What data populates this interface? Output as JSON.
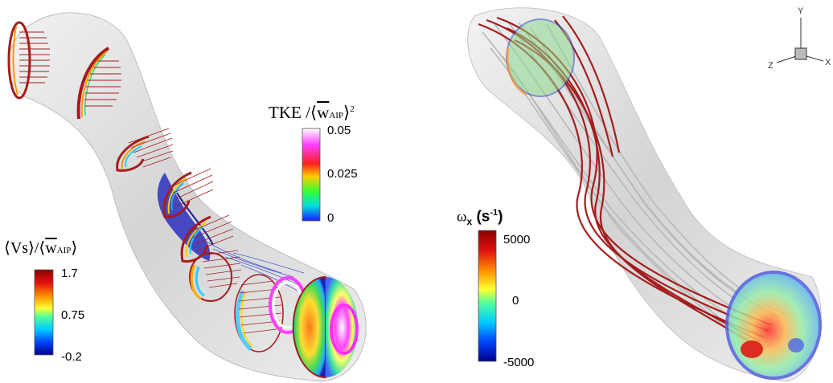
{
  "left_panel": {
    "tke_colorbar": {
      "title_prefix": "TKE /",
      "title_w": "w",
      "title_sub": "AIP",
      "title_power": "2",
      "ticks": [
        "0.05",
        "0.025",
        "0"
      ]
    },
    "vs_colorbar": {
      "title_v": "Vs",
      "title_w": "w",
      "title_sub": "AIP",
      "ticks": [
        "1.7",
        "0.75",
        "-0.2"
      ]
    }
  },
  "right_panel": {
    "vorticity_colorbar": {
      "title_symbol": "ω",
      "title_sub": "x",
      "title_unit_open": " (s",
      "title_unit_power": "-1",
      "title_unit_close": ")",
      "ticks": [
        "5000",
        "0",
        "-5000"
      ]
    },
    "axes_triad": {
      "y": "Y",
      "z": "Z",
      "x": "X"
    }
  },
  "colors": {
    "streamline_red": "#a51c1c",
    "streamline_gray": "#b8b8b8",
    "vortex_blue": "#2a2fbf",
    "duct_surface": "#d9d9d9"
  }
}
